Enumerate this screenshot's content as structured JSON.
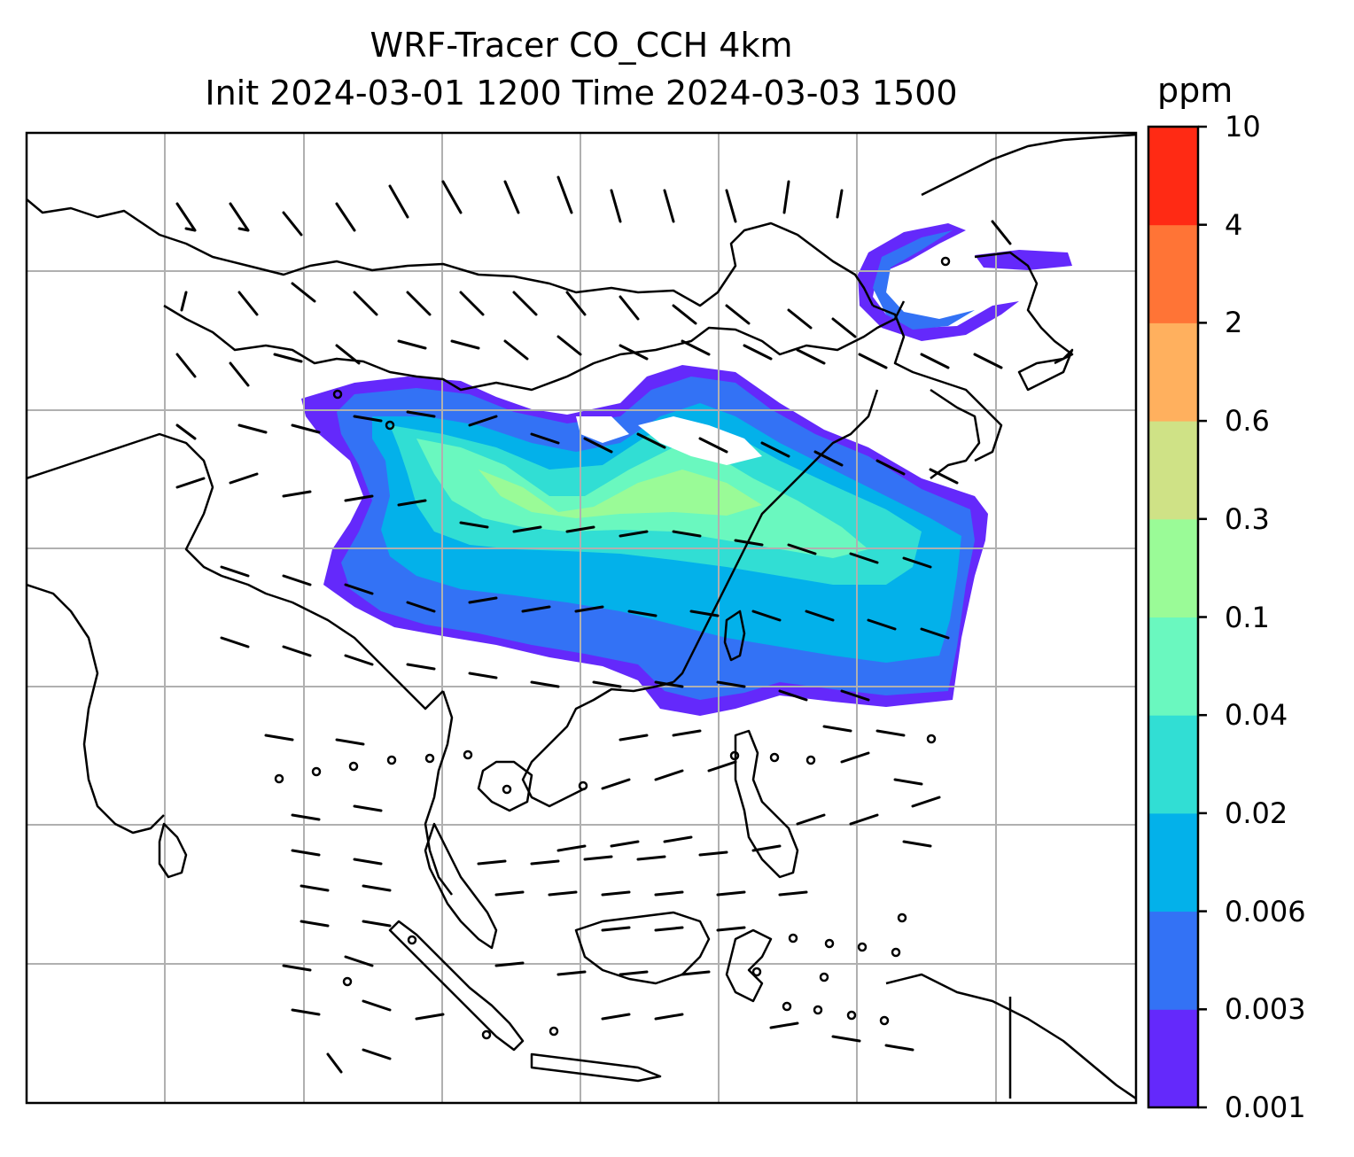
{
  "title": {
    "line1": "WRF-Tracer CO_CCH 4km",
    "line2": "Init 2024-03-01 1200 Time 2024-03-03 1500"
  },
  "colorbar": {
    "unit": "ppm",
    "levels": [
      "0.001",
      "0.003",
      "0.006",
      "0.02",
      "0.04",
      "0.1",
      "0.3",
      "0.6",
      "2",
      "4",
      "10"
    ],
    "colors": [
      "#6429fb",
      "#3372f5",
      "#03b1ea",
      "#31ded4",
      "#6af8bf",
      "#9afb97",
      "#cfe286",
      "#ffb05e",
      "#ff7436",
      "#ff2a14"
    ]
  },
  "map": {
    "gridlines": true,
    "layers": [
      "coastlines",
      "borders",
      "tracer-plume",
      "wind-barbs"
    ]
  }
}
